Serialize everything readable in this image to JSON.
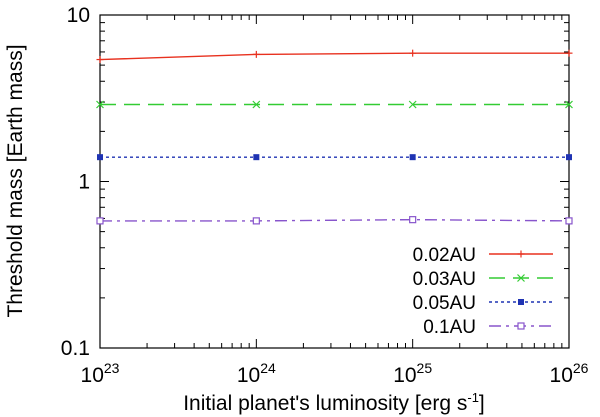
{
  "chart_data": {
    "type": "line",
    "xlabel": "Initial planet's luminosity [erg s",
    "xlabel_sup": "-1",
    "xlabel_tail": "]",
    "ylabel": "Threshold mass [Earth mass]",
    "x_scale": "log",
    "y_scale": "log",
    "xlim": [
      1e+23,
      1e+26
    ],
    "ylim": [
      0.1,
      10
    ],
    "x_ticks": [
      {
        "value": 1e+23,
        "base": "10",
        "exp": "23"
      },
      {
        "value": 1e+24,
        "base": "10",
        "exp": "24"
      },
      {
        "value": 1e+25,
        "base": "10",
        "exp": "25"
      },
      {
        "value": 1e+26,
        "base": "10",
        "exp": "26"
      }
    ],
    "y_ticks": [
      {
        "value": 0.1,
        "label": "0.1"
      },
      {
        "value": 1,
        "label": "1"
      },
      {
        "value": 10,
        "label": "10"
      }
    ],
    "grid": false,
    "legend_position": "bottom-right",
    "series": [
      {
        "name": "0.02AU",
        "color": "#e8311f",
        "dash": "solid",
        "marker": "plus",
        "x": [
          1e+23,
          1e+24,
          1e+25,
          1e+26
        ],
        "y": [
          5.4,
          5.8,
          5.9,
          5.9
        ]
      },
      {
        "name": "0.03AU",
        "color": "#33cc33",
        "dash": "long-dash",
        "marker": "cross",
        "x": [
          1e+23,
          1e+24,
          1e+25,
          1e+26
        ],
        "y": [
          2.9,
          2.9,
          2.9,
          2.9
        ]
      },
      {
        "name": "0.05AU",
        "color": "#1f33b3",
        "dash": "dotted",
        "marker": "filled-square",
        "x": [
          1e+23,
          1e+24,
          1e+25,
          1e+26
        ],
        "y": [
          1.4,
          1.4,
          1.4,
          1.4
        ]
      },
      {
        "name": "0.1AU",
        "color": "#8855cc",
        "dash": "dash-dot",
        "marker": "open-square",
        "x": [
          1e+23,
          1e+24,
          1e+25,
          1e+26
        ],
        "y": [
          0.58,
          0.58,
          0.59,
          0.58
        ]
      }
    ]
  }
}
